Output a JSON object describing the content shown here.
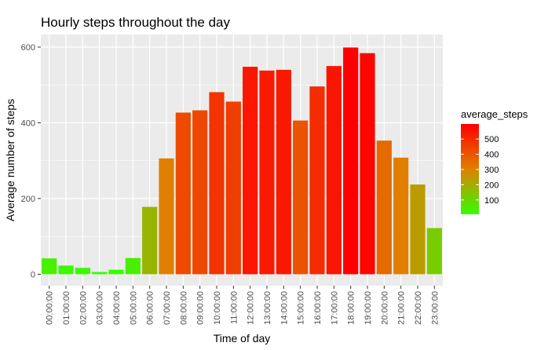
{
  "chart_data": {
    "type": "bar",
    "title": "Hourly steps throughout the day",
    "xlabel": "Time of day",
    "ylabel": "Average number of steps",
    "categories": [
      "00:00:00",
      "01:00:00",
      "02:00:00",
      "03:00:00",
      "04:00:00",
      "05:00:00",
      "06:00:00",
      "07:00:00",
      "08:00:00",
      "09:00:00",
      "10:00:00",
      "11:00:00",
      "12:00:00",
      "13:00:00",
      "14:00:00",
      "15:00:00",
      "16:00:00",
      "17:00:00",
      "18:00:00",
      "19:00:00",
      "20:00:00",
      "21:00:00",
      "22:00:00",
      "23:00:00"
    ],
    "values": [
      42,
      23,
      17,
      6,
      12,
      43,
      178,
      306,
      427,
      433,
      481,
      456,
      548,
      538,
      540,
      406,
      496,
      550,
      599,
      584,
      353,
      308,
      237,
      122
    ],
    "ylim": [
      0,
      600
    ],
    "yticks": [
      0,
      200,
      400,
      600
    ],
    "grid": true,
    "fill": {
      "variable": "average_steps",
      "low_color": "#33ff00",
      "mid_color": "#e08000",
      "high_color": "#ff0000",
      "low_value": 6,
      "high_value": 599
    },
    "legend": {
      "title": "average_steps",
      "ticks": [
        100,
        200,
        300,
        400,
        500
      ],
      "placement": "right"
    },
    "panel_background": "#ebebeb",
    "gridline_color": "#ffffff"
  }
}
